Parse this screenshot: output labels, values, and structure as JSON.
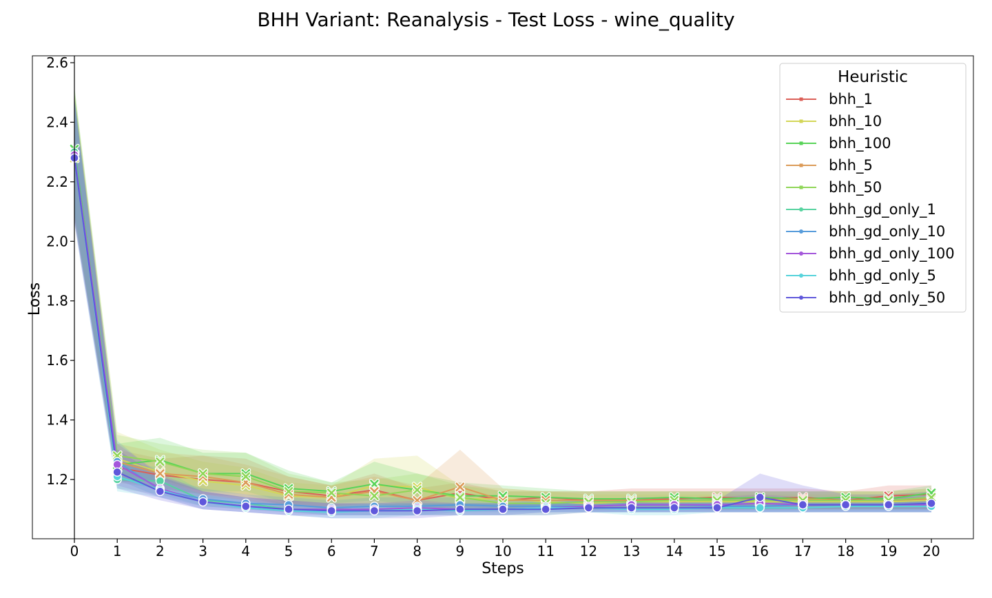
{
  "chart_data": {
    "type": "line",
    "title": "BHH Variant: Reanalysis - Test Loss - wine_quality",
    "xlabel": "Steps",
    "ylabel": "Loss",
    "xlim": [
      -1,
      21
    ],
    "ylim": [
      1.0,
      2.62
    ],
    "x": [
      0,
      1,
      2,
      3,
      4,
      5,
      6,
      7,
      8,
      9,
      10,
      11,
      12,
      13,
      14,
      15,
      16,
      17,
      18,
      19,
      20
    ],
    "y_ticks": [
      "1.2",
      "1.4",
      "1.6",
      "1.8",
      "2.0",
      "2.2",
      "2.4",
      "2.6"
    ],
    "y_tick_values": [
      1.2,
      1.4,
      1.6,
      1.8,
      2.0,
      2.2,
      2.4,
      2.6
    ],
    "legend": {
      "title": "Heuristic",
      "position": "top-right"
    },
    "grid": false,
    "series": [
      {
        "name": "bhh_1",
        "color": "#db5f57",
        "marker": "x",
        "values": [
          2.29,
          1.24,
          1.215,
          1.2,
          1.19,
          1.16,
          1.145,
          1.165,
          1.13,
          1.155,
          1.13,
          1.14,
          1.13,
          1.13,
          1.135,
          1.14,
          1.135,
          1.14,
          1.13,
          1.145,
          1.15
        ],
        "band": [
          [
            2.08,
            2.5
          ],
          [
            1.19,
            1.3
          ],
          [
            1.17,
            1.27
          ],
          [
            1.15,
            1.28
          ],
          [
            1.14,
            1.27
          ],
          [
            1.11,
            1.21
          ],
          [
            1.11,
            1.18
          ],
          [
            1.12,
            1.22
          ],
          [
            1.1,
            1.17
          ],
          [
            1.11,
            1.19
          ],
          [
            1.1,
            1.16
          ],
          [
            1.11,
            1.16
          ],
          [
            1.1,
            1.16
          ],
          [
            1.1,
            1.17
          ],
          [
            1.1,
            1.17
          ],
          [
            1.1,
            1.17
          ],
          [
            1.1,
            1.17
          ],
          [
            1.1,
            1.17
          ],
          [
            1.1,
            1.16
          ],
          [
            1.1,
            1.18
          ],
          [
            1.1,
            1.18
          ]
        ]
      },
      {
        "name": "bhh_10",
        "color": "#d3d657",
        "marker": "x",
        "values": [
          2.28,
          1.27,
          1.225,
          1.195,
          1.18,
          1.145,
          1.14,
          1.18,
          1.175,
          1.135,
          1.135,
          1.125,
          1.12,
          1.125,
          1.125,
          1.125,
          1.125,
          1.125,
          1.125,
          1.125,
          1.13
        ],
        "band": [
          [
            2.07,
            2.5
          ],
          [
            1.2,
            1.36
          ],
          [
            1.17,
            1.3
          ],
          [
            1.14,
            1.26
          ],
          [
            1.13,
            1.24
          ],
          [
            1.11,
            1.19
          ],
          [
            1.1,
            1.18
          ],
          [
            1.11,
            1.27
          ],
          [
            1.1,
            1.28
          ],
          [
            1.1,
            1.18
          ],
          [
            1.1,
            1.17
          ],
          [
            1.1,
            1.16
          ],
          [
            1.1,
            1.15
          ],
          [
            1.1,
            1.15
          ],
          [
            1.1,
            1.15
          ],
          [
            1.1,
            1.15
          ],
          [
            1.1,
            1.15
          ],
          [
            1.1,
            1.15
          ],
          [
            1.1,
            1.15
          ],
          [
            1.1,
            1.15
          ],
          [
            1.1,
            1.16
          ]
        ]
      },
      {
        "name": "bhh_100",
        "color": "#57d357",
        "marker": "x",
        "values": [
          2.31,
          1.25,
          1.265,
          1.22,
          1.22,
          1.17,
          1.16,
          1.185,
          1.165,
          1.145,
          1.145,
          1.14,
          1.135,
          1.135,
          1.14,
          1.135,
          1.14,
          1.135,
          1.14,
          1.135,
          1.155
        ],
        "band": [
          [
            2.1,
            2.52
          ],
          [
            1.19,
            1.32
          ],
          [
            1.2,
            1.34
          ],
          [
            1.16,
            1.29
          ],
          [
            1.16,
            1.29
          ],
          [
            1.12,
            1.23
          ],
          [
            1.12,
            1.19
          ],
          [
            1.13,
            1.26
          ],
          [
            1.11,
            1.22
          ],
          [
            1.11,
            1.19
          ],
          [
            1.11,
            1.18
          ],
          [
            1.11,
            1.17
          ],
          [
            1.11,
            1.16
          ],
          [
            1.11,
            1.16
          ],
          [
            1.11,
            1.16
          ],
          [
            1.11,
            1.16
          ],
          [
            1.11,
            1.16
          ],
          [
            1.11,
            1.16
          ],
          [
            1.11,
            1.16
          ],
          [
            1.11,
            1.16
          ],
          [
            1.11,
            1.18
          ]
        ]
      },
      {
        "name": "bhh_5",
        "color": "#db9a57",
        "marker": "x",
        "values": [
          2.29,
          1.26,
          1.22,
          1.21,
          1.19,
          1.15,
          1.14,
          1.16,
          1.13,
          1.175,
          1.13,
          1.13,
          1.13,
          1.13,
          1.13,
          1.13,
          1.13,
          1.135,
          1.13,
          1.13,
          1.135
        ],
        "band": [
          [
            2.08,
            2.5
          ],
          [
            1.2,
            1.32
          ],
          [
            1.17,
            1.29
          ],
          [
            1.15,
            1.28
          ],
          [
            1.13,
            1.25
          ],
          [
            1.1,
            1.21
          ],
          [
            1.1,
            1.18
          ],
          [
            1.11,
            1.21
          ],
          [
            1.1,
            1.18
          ],
          [
            1.1,
            1.3
          ],
          [
            1.1,
            1.17
          ],
          [
            1.1,
            1.16
          ],
          [
            1.1,
            1.16
          ],
          [
            1.1,
            1.16
          ],
          [
            1.1,
            1.16
          ],
          [
            1.1,
            1.16
          ],
          [
            1.1,
            1.16
          ],
          [
            1.1,
            1.16
          ],
          [
            1.1,
            1.16
          ],
          [
            1.1,
            1.16
          ],
          [
            1.1,
            1.17
          ]
        ]
      },
      {
        "name": "bhh_50",
        "color": "#8fd657",
        "marker": "x",
        "values": [
          2.29,
          1.28,
          1.26,
          1.22,
          1.21,
          1.16,
          1.155,
          1.145,
          1.165,
          1.14,
          1.12,
          1.12,
          1.125,
          1.125,
          1.13,
          1.13,
          1.13,
          1.13,
          1.13,
          1.13,
          1.14
        ],
        "band": [
          [
            2.08,
            2.52
          ],
          [
            1.22,
            1.35
          ],
          [
            1.19,
            1.32
          ],
          [
            1.16,
            1.3
          ],
          [
            1.15,
            1.29
          ],
          [
            1.11,
            1.22
          ],
          [
            1.11,
            1.19
          ],
          [
            1.1,
            1.2
          ],
          [
            1.11,
            1.22
          ],
          [
            1.1,
            1.18
          ],
          [
            1.1,
            1.16
          ],
          [
            1.1,
            1.16
          ],
          [
            1.1,
            1.16
          ],
          [
            1.1,
            1.16
          ],
          [
            1.1,
            1.16
          ],
          [
            1.1,
            1.16
          ],
          [
            1.1,
            1.16
          ],
          [
            1.1,
            1.16
          ],
          [
            1.1,
            1.16
          ],
          [
            1.1,
            1.16
          ],
          [
            1.1,
            1.17
          ]
        ]
      },
      {
        "name": "bhh_gd_only_1",
        "color": "#57d3a0",
        "marker": "o",
        "values": [
          2.3,
          1.2,
          1.195,
          1.13,
          1.12,
          1.1,
          1.1,
          1.1,
          1.1,
          1.1,
          1.1,
          1.1,
          1.105,
          1.105,
          1.105,
          1.105,
          1.105,
          1.105,
          1.11,
          1.11,
          1.11
        ],
        "band": [
          [
            2.09,
            2.5
          ],
          [
            1.17,
            1.26
          ],
          [
            1.15,
            1.24
          ],
          [
            1.11,
            1.16
          ],
          [
            1.1,
            1.14
          ],
          [
            1.09,
            1.12
          ],
          [
            1.08,
            1.12
          ],
          [
            1.08,
            1.12
          ],
          [
            1.08,
            1.12
          ],
          [
            1.08,
            1.12
          ],
          [
            1.08,
            1.12
          ],
          [
            1.08,
            1.12
          ],
          [
            1.09,
            1.13
          ],
          [
            1.09,
            1.13
          ],
          [
            1.09,
            1.13
          ],
          [
            1.09,
            1.13
          ],
          [
            1.09,
            1.13
          ],
          [
            1.09,
            1.13
          ],
          [
            1.09,
            1.13
          ],
          [
            1.09,
            1.13
          ],
          [
            1.09,
            1.13
          ]
        ]
      },
      {
        "name": "bhh_gd_only_10",
        "color": "#579cdb",
        "marker": "o",
        "values": [
          2.29,
          1.26,
          1.165,
          1.135,
          1.12,
          1.115,
          1.105,
          1.11,
          1.11,
          1.115,
          1.11,
          1.11,
          1.11,
          1.115,
          1.115,
          1.11,
          1.11,
          1.115,
          1.115,
          1.115,
          1.12
        ],
        "band": [
          [
            2.07,
            2.48
          ],
          [
            1.2,
            1.33
          ],
          [
            1.14,
            1.21
          ],
          [
            1.11,
            1.17
          ],
          [
            1.1,
            1.15
          ],
          [
            1.09,
            1.14
          ],
          [
            1.08,
            1.13
          ],
          [
            1.08,
            1.14
          ],
          [
            1.08,
            1.14
          ],
          [
            1.09,
            1.14
          ],
          [
            1.09,
            1.13
          ],
          [
            1.09,
            1.13
          ],
          [
            1.09,
            1.13
          ],
          [
            1.09,
            1.14
          ],
          [
            1.09,
            1.14
          ],
          [
            1.09,
            1.13
          ],
          [
            1.09,
            1.13
          ],
          [
            1.09,
            1.14
          ],
          [
            1.09,
            1.14
          ],
          [
            1.09,
            1.14
          ],
          [
            1.09,
            1.15
          ]
        ]
      },
      {
        "name": "bhh_gd_only_100",
        "color": "#a457db",
        "marker": "o",
        "values": [
          2.29,
          1.25,
          1.17,
          1.125,
          1.11,
          1.1,
          1.1,
          1.1,
          1.105,
          1.1,
          1.1,
          1.105,
          1.11,
          1.115,
          1.115,
          1.115,
          1.12,
          1.115,
          1.115,
          1.115,
          1.115
        ],
        "band": [
          [
            2.07,
            2.48
          ],
          [
            1.18,
            1.32
          ],
          [
            1.14,
            1.22
          ],
          [
            1.1,
            1.16
          ],
          [
            1.09,
            1.14
          ],
          [
            1.08,
            1.13
          ],
          [
            1.08,
            1.12
          ],
          [
            1.08,
            1.12
          ],
          [
            1.08,
            1.13
          ],
          [
            1.08,
            1.12
          ],
          [
            1.08,
            1.12
          ],
          [
            1.09,
            1.13
          ],
          [
            1.09,
            1.13
          ],
          [
            1.09,
            1.14
          ],
          [
            1.09,
            1.14
          ],
          [
            1.09,
            1.14
          ],
          [
            1.09,
            1.15
          ],
          [
            1.09,
            1.14
          ],
          [
            1.09,
            1.14
          ],
          [
            1.09,
            1.14
          ],
          [
            1.09,
            1.14
          ]
        ]
      },
      {
        "name": "bhh_gd_only_5",
        "color": "#57d3db",
        "marker": "o",
        "values": [
          2.28,
          1.21,
          1.165,
          1.125,
          1.105,
          1.095,
          1.09,
          1.095,
          1.1,
          1.095,
          1.1,
          1.105,
          1.105,
          1.1,
          1.1,
          1.105,
          1.105,
          1.105,
          1.11,
          1.11,
          1.11
        ],
        "band": [
          [
            2.06,
            2.48
          ],
          [
            1.16,
            1.26
          ],
          [
            1.14,
            1.2
          ],
          [
            1.1,
            1.15
          ],
          [
            1.09,
            1.13
          ],
          [
            1.08,
            1.11
          ],
          [
            1.07,
            1.11
          ],
          [
            1.07,
            1.12
          ],
          [
            1.08,
            1.12
          ],
          [
            1.08,
            1.12
          ],
          [
            1.08,
            1.12
          ],
          [
            1.09,
            1.13
          ],
          [
            1.09,
            1.13
          ],
          [
            1.08,
            1.12
          ],
          [
            1.08,
            1.12
          ],
          [
            1.09,
            1.13
          ],
          [
            1.09,
            1.13
          ],
          [
            1.09,
            1.13
          ],
          [
            1.09,
            1.13
          ],
          [
            1.09,
            1.13
          ],
          [
            1.09,
            1.13
          ]
        ]
      },
      {
        "name": "bhh_gd_only_50",
        "color": "#5f57db",
        "marker": "o",
        "values": [
          2.28,
          1.225,
          1.16,
          1.125,
          1.11,
          1.1,
          1.095,
          1.095,
          1.095,
          1.1,
          1.1,
          1.1,
          1.105,
          1.105,
          1.105,
          1.105,
          1.14,
          1.115,
          1.115,
          1.115,
          1.12
        ],
        "band": [
          [
            2.06,
            2.48
          ],
          [
            1.17,
            1.3
          ],
          [
            1.13,
            1.21
          ],
          [
            1.1,
            1.16
          ],
          [
            1.09,
            1.14
          ],
          [
            1.08,
            1.13
          ],
          [
            1.07,
            1.12
          ],
          [
            1.07,
            1.12
          ],
          [
            1.07,
            1.12
          ],
          [
            1.08,
            1.12
          ],
          [
            1.08,
            1.12
          ],
          [
            1.08,
            1.12
          ],
          [
            1.09,
            1.13
          ],
          [
            1.09,
            1.13
          ],
          [
            1.09,
            1.13
          ],
          [
            1.09,
            1.13
          ],
          [
            1.09,
            1.22
          ],
          [
            1.09,
            1.18
          ],
          [
            1.09,
            1.15
          ],
          [
            1.09,
            1.15
          ],
          [
            1.09,
            1.16
          ]
        ]
      }
    ]
  }
}
